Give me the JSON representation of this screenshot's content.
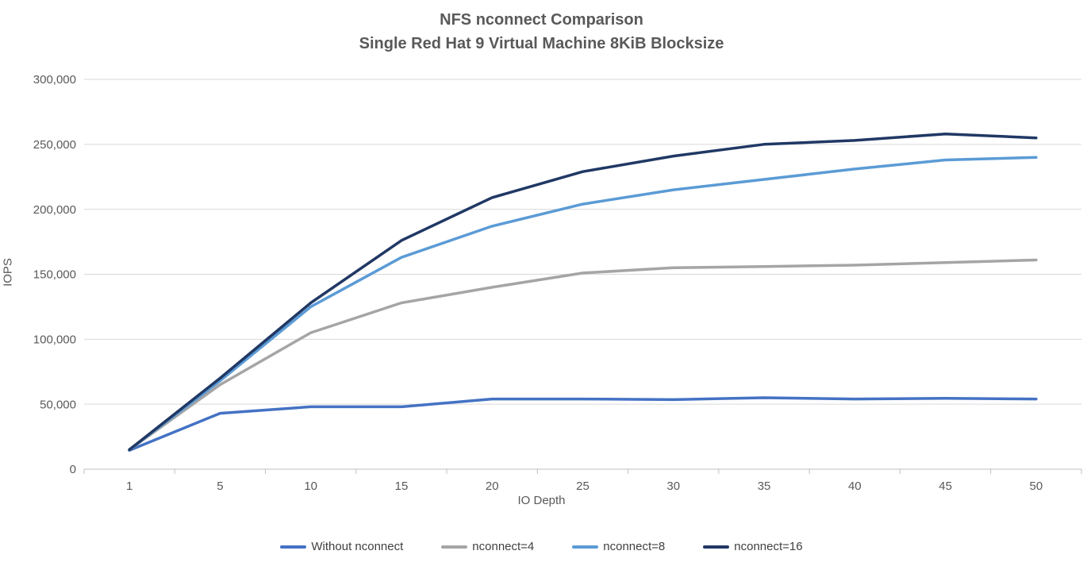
{
  "chart_data": {
    "type": "line",
    "title": "NFS nconnect Comparison",
    "subtitle": "Single Red Hat 9 Virtual Machine 8KiB Blocksize",
    "xlabel": "IO Depth",
    "ylabel": "IOPS",
    "categories": [
      1,
      5,
      10,
      15,
      20,
      25,
      30,
      35,
      40,
      45,
      50
    ],
    "ylim": [
      0,
      300000
    ],
    "ytick_step": 50000,
    "ytick_labels": [
      "0",
      "50,000",
      "100,000",
      "150,000",
      "200,000",
      "250,000",
      "300,000"
    ],
    "grid": "horizontal",
    "legend_position": "bottom",
    "series": [
      {
        "name": "Without nconnect",
        "color": "#4472C4",
        "values": [
          14500,
          43000,
          48000,
          48000,
          54000,
          54000,
          53500,
          55000,
          54000,
          54500,
          54000
        ]
      },
      {
        "name": "nconnect=4",
        "color": "#A5A5A5",
        "values": [
          15000,
          65000,
          105000,
          128000,
          140000,
          151000,
          155000,
          156000,
          157000,
          159000,
          161000
        ]
      },
      {
        "name": "nconnect=8",
        "color": "#5B9BD5",
        "values": [
          15000,
          68000,
          125000,
          163000,
          187000,
          204000,
          215000,
          223000,
          231000,
          238000,
          240000
        ]
      },
      {
        "name": "nconnect=16",
        "color": "#203864",
        "values": [
          15000,
          70000,
          128000,
          176000,
          209000,
          229000,
          241000,
          250000,
          253000,
          258000,
          255000
        ]
      }
    ],
    "colors": {
      "gridline": "#D9D9D9",
      "axis_line": "#BFBFBF",
      "tick_label": "#595959",
      "title": "#595959",
      "legend_label": "#404040"
    }
  }
}
